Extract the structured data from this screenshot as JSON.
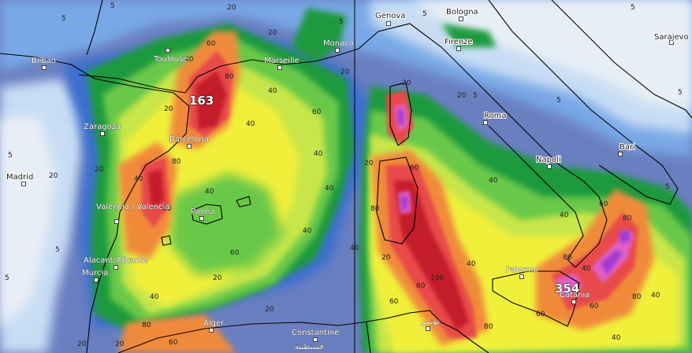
{
  "map": {
    "colors": {
      "sea": "#6a7fc0",
      "low1": "#3a6ed0",
      "low2": "#78a8e6",
      "low3": "#c8ddf4",
      "low4": "#e8eef6",
      "band10": "#1a9a3c",
      "band20": "#6ac84a",
      "band30": "#c8e64a",
      "band40": "#f0f03a",
      "band50": "#f5c23a",
      "band60": "#f08a3a",
      "band80": "#e84a4a",
      "band100": "#c41a2a",
      "band150": "#e060c8",
      "band200": "#a23ad2"
    },
    "cities": [
      {
        "name": "Toulouse",
        "dark": false
      },
      {
        "name": "Marseille",
        "dark": false
      },
      {
        "name": "Monaco",
        "dark": false
      },
      {
        "name": "Genova",
        "dark": true
      },
      {
        "name": "Bologna",
        "dark": true
      },
      {
        "name": "Firenze",
        "dark": true
      },
      {
        "name": "Sarajevo",
        "dark": true
      },
      {
        "name": "Bilbao",
        "dark": false
      },
      {
        "name": "Zaragoza",
        "dark": false
      },
      {
        "name": "Barcelona",
        "dark": false
      },
      {
        "name": "Madrid",
        "dark": true
      },
      {
        "name": "Roma",
        "dark": true
      },
      {
        "name": "Bari",
        "dark": true
      },
      {
        "name": "Napoli",
        "dark": true
      },
      {
        "name": "Valencia / Valencia",
        "dark": false
      },
      {
        "name": "Palma",
        "dark": false
      },
      {
        "name": "Alacant/Alicante",
        "dark": false
      },
      {
        "name": "Murcia",
        "dark": false
      },
      {
        "name": "Palermo",
        "dark": false
      },
      {
        "name": "Catania",
        "dark": false
      },
      {
        "name": "Alger",
        "dark": false
      },
      {
        "name": "Constantine",
        "dark": false
      },
      {
        "name": "قسنطينة",
        "dark": false
      },
      {
        "name": "تونس",
        "dark": false
      }
    ],
    "max_labels": [
      "163",
      "354"
    ],
    "contour_labels": [
      "5",
      "20",
      "40",
      "60",
      "80",
      "100"
    ]
  }
}
